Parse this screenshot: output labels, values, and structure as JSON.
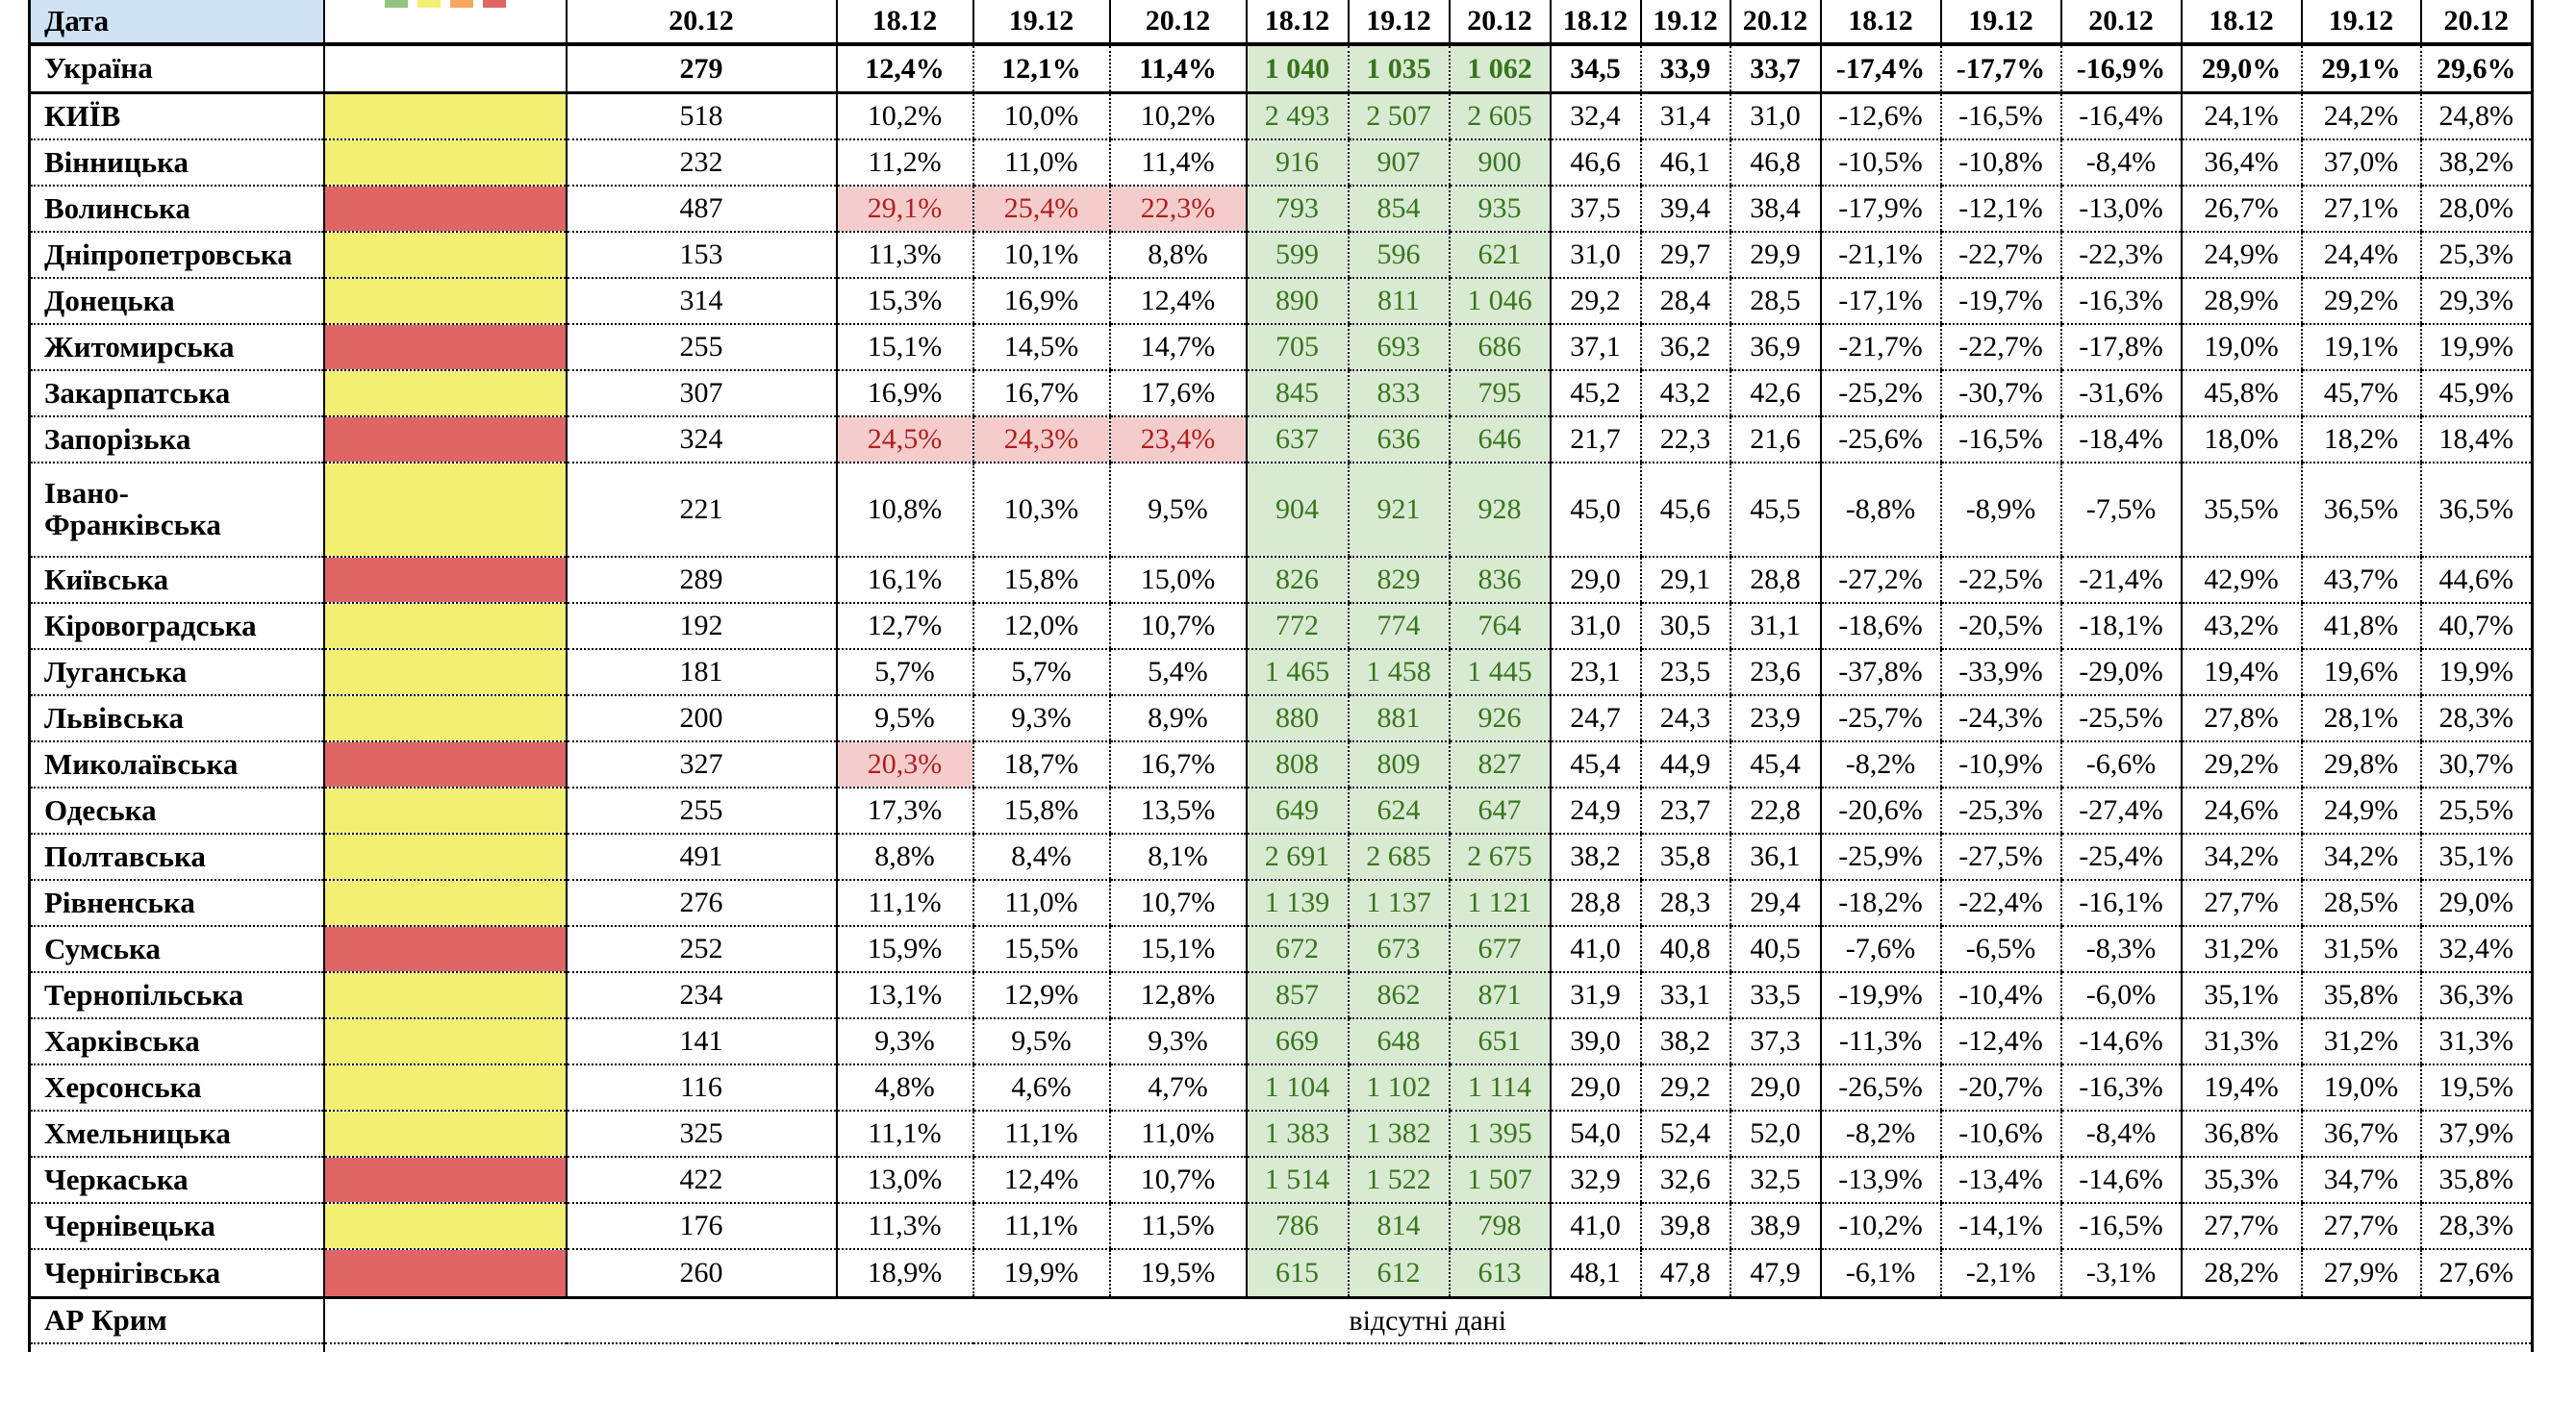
{
  "table": {
    "colors": {
      "header_blue": "#cfe2f3",
      "status_yellow": "#f2ef72",
      "status_red": "#e06565",
      "highlight_pink_bg": "#f4cccc",
      "highlight_red_text": "#ad2020",
      "green_col_bg": "#d9ead3",
      "green_col_text": "#38761d",
      "border": "#000000",
      "legend_swatches": [
        "#93c47d",
        "#f2ef72",
        "#f6a860",
        "#e06565"
      ]
    },
    "legend_swatch_names": [
      "legend-green-swatch",
      "legend-yellow-swatch",
      "legend-orange-swatch",
      "legend-red-swatch"
    ],
    "header_cells": [
      "Дата",
      "",
      "20.12",
      "18.12",
      "19.12",
      "20.12",
      "18.12",
      "19.12",
      "20.12",
      "18.12",
      "19.12",
      "20.12",
      "18.12",
      "19.12",
      "20.12",
      "18.12",
      "19.12",
      "20.12"
    ],
    "rows": [
      {
        "name": "Україна",
        "color": null,
        "bold": true,
        "values": [
          "279",
          "12,4%",
          "12,1%",
          "11,4%",
          "1 040",
          "1 035",
          "1 062",
          "34,5",
          "33,9",
          "33,7",
          "-17,4%",
          "-17,7%",
          "-16,9%",
          "29,0%",
          "29,1%",
          "29,6%"
        ],
        "red_cells": []
      },
      {
        "name": "КИЇВ",
        "color": "yellow",
        "values": [
          "518",
          "10,2%",
          "10,0%",
          "10,2%",
          "2 493",
          "2 507",
          "2 605",
          "32,4",
          "31,4",
          "31,0",
          "-12,6%",
          "-16,5%",
          "-16,4%",
          "24,1%",
          "24,2%",
          "24,8%"
        ],
        "red_cells": []
      },
      {
        "name": "Вінницька",
        "color": "yellow",
        "values": [
          "232",
          "11,2%",
          "11,0%",
          "11,4%",
          "916",
          "907",
          "900",
          "46,6",
          "46,1",
          "46,8",
          "-10,5%",
          "-10,8%",
          "-8,4%",
          "36,4%",
          "37,0%",
          "38,2%"
        ],
        "red_cells": []
      },
      {
        "name": "Волинська",
        "color": "red",
        "values": [
          "487",
          "29,1%",
          "25,4%",
          "22,3%",
          "793",
          "854",
          "935",
          "37,5",
          "39,4",
          "38,4",
          "-17,9%",
          "-12,1%",
          "-13,0%",
          "26,7%",
          "27,1%",
          "28,0%"
        ],
        "red_cells": [
          1,
          2,
          3
        ]
      },
      {
        "name": "Дніпропетровська",
        "color": "yellow",
        "values": [
          "153",
          "11,3%",
          "10,1%",
          "8,8%",
          "599",
          "596",
          "621",
          "31,0",
          "29,7",
          "29,9",
          "-21,1%",
          "-22,7%",
          "-22,3%",
          "24,9%",
          "24,4%",
          "25,3%"
        ],
        "red_cells": []
      },
      {
        "name": "Донецька",
        "color": "yellow",
        "values": [
          "314",
          "15,3%",
          "16,9%",
          "12,4%",
          "890",
          "811",
          "1 046",
          "29,2",
          "28,4",
          "28,5",
          "-17,1%",
          "-19,7%",
          "-16,3%",
          "28,9%",
          "29,2%",
          "29,3%"
        ],
        "red_cells": []
      },
      {
        "name": "Житомирська",
        "color": "red",
        "values": [
          "255",
          "15,1%",
          "14,5%",
          "14,7%",
          "705",
          "693",
          "686",
          "37,1",
          "36,2",
          "36,9",
          "-21,7%",
          "-22,7%",
          "-17,8%",
          "19,0%",
          "19,1%",
          "19,9%"
        ],
        "red_cells": []
      },
      {
        "name": "Закарпатська",
        "color": "yellow",
        "values": [
          "307",
          "16,9%",
          "16,7%",
          "17,6%",
          "845",
          "833",
          "795",
          "45,2",
          "43,2",
          "42,6",
          "-25,2%",
          "-30,7%",
          "-31,6%",
          "45,8%",
          "45,7%",
          "45,9%"
        ],
        "red_cells": []
      },
      {
        "name": "Запорізька",
        "color": "red",
        "values": [
          "324",
          "24,5%",
          "24,3%",
          "23,4%",
          "637",
          "636",
          "646",
          "21,7",
          "22,3",
          "21,6",
          "-25,6%",
          "-16,5%",
          "-18,4%",
          "18,0%",
          "18,2%",
          "18,4%"
        ],
        "red_cells": [
          1,
          2,
          3
        ]
      },
      {
        "name": "Івано-\nФранківська",
        "color": "yellow",
        "tall": true,
        "values": [
          "221",
          "10,8%",
          "10,3%",
          "9,5%",
          "904",
          "921",
          "928",
          "45,0",
          "45,6",
          "45,5",
          "-8,8%",
          "-8,9%",
          "-7,5%",
          "35,5%",
          "36,5%",
          "36,5%"
        ],
        "red_cells": []
      },
      {
        "name": "Київська",
        "color": "red",
        "values": [
          "289",
          "16,1%",
          "15,8%",
          "15,0%",
          "826",
          "829",
          "836",
          "29,0",
          "29,1",
          "28,8",
          "-27,2%",
          "-22,5%",
          "-21,4%",
          "42,9%",
          "43,7%",
          "44,6%"
        ],
        "red_cells": []
      },
      {
        "name": "Кіровоградська",
        "color": "yellow",
        "values": [
          "192",
          "12,7%",
          "12,0%",
          "10,7%",
          "772",
          "774",
          "764",
          "31,0",
          "30,5",
          "31,1",
          "-18,6%",
          "-20,5%",
          "-18,1%",
          "43,2%",
          "41,8%",
          "40,7%"
        ],
        "red_cells": []
      },
      {
        "name": "Луганська",
        "color": "yellow",
        "values": [
          "181",
          "5,7%",
          "5,7%",
          "5,4%",
          "1 465",
          "1 458",
          "1 445",
          "23,1",
          "23,5",
          "23,6",
          "-37,8%",
          "-33,9%",
          "-29,0%",
          "19,4%",
          "19,6%",
          "19,9%"
        ],
        "red_cells": []
      },
      {
        "name": "Львівська",
        "color": "yellow",
        "values": [
          "200",
          "9,5%",
          "9,3%",
          "8,9%",
          "880",
          "881",
          "926",
          "24,7",
          "24,3",
          "23,9",
          "-25,7%",
          "-24,3%",
          "-25,5%",
          "27,8%",
          "28,1%",
          "28,3%"
        ],
        "red_cells": []
      },
      {
        "name": "Миколаївська",
        "color": "red",
        "values": [
          "327",
          "20,3%",
          "18,7%",
          "16,7%",
          "808",
          "809",
          "827",
          "45,4",
          "44,9",
          "45,4",
          "-8,2%",
          "-10,9%",
          "-6,6%",
          "29,2%",
          "29,8%",
          "30,7%"
        ],
        "red_cells": [
          1
        ]
      },
      {
        "name": "Одеська",
        "color": "yellow",
        "values": [
          "255",
          "17,3%",
          "15,8%",
          "13,5%",
          "649",
          "624",
          "647",
          "24,9",
          "23,7",
          "22,8",
          "-20,6%",
          "-25,3%",
          "-27,4%",
          "24,6%",
          "24,9%",
          "25,5%"
        ],
        "red_cells": []
      },
      {
        "name": "Полтавська",
        "color": "yellow",
        "values": [
          "491",
          "8,8%",
          "8,4%",
          "8,1%",
          "2 691",
          "2 685",
          "2 675",
          "38,2",
          "35,8",
          "36,1",
          "-25,9%",
          "-27,5%",
          "-25,4%",
          "34,2%",
          "34,2%",
          "35,1%"
        ],
        "red_cells": []
      },
      {
        "name": "Рівненська",
        "color": "yellow",
        "values": [
          "276",
          "11,1%",
          "11,0%",
          "10,7%",
          "1 139",
          "1 137",
          "1 121",
          "28,8",
          "28,3",
          "29,4",
          "-18,2%",
          "-22,4%",
          "-16,1%",
          "27,7%",
          "28,5%",
          "29,0%"
        ],
        "red_cells": []
      },
      {
        "name": "Сумська",
        "color": "red",
        "values": [
          "252",
          "15,9%",
          "15,5%",
          "15,1%",
          "672",
          "673",
          "677",
          "41,0",
          "40,8",
          "40,5",
          "-7,6%",
          "-6,5%",
          "-8,3%",
          "31,2%",
          "31,5%",
          "32,4%"
        ],
        "red_cells": []
      },
      {
        "name": "Тернопільська",
        "color": "yellow",
        "values": [
          "234",
          "13,1%",
          "12,9%",
          "12,8%",
          "857",
          "862",
          "871",
          "31,9",
          "33,1",
          "33,5",
          "-19,9%",
          "-10,4%",
          "-6,0%",
          "35,1%",
          "35,8%",
          "36,3%"
        ],
        "red_cells": []
      },
      {
        "name": "Харківська",
        "color": "yellow",
        "values": [
          "141",
          "9,3%",
          "9,5%",
          "9,3%",
          "669",
          "648",
          "651",
          "39,0",
          "38,2",
          "37,3",
          "-11,3%",
          "-12,4%",
          "-14,6%",
          "31,3%",
          "31,2%",
          "31,3%"
        ],
        "red_cells": []
      },
      {
        "name": "Херсонська",
        "color": "yellow",
        "values": [
          "116",
          "4,8%",
          "4,6%",
          "4,7%",
          "1 104",
          "1 102",
          "1 114",
          "29,0",
          "29,2",
          "29,0",
          "-26,5%",
          "-20,7%",
          "-16,3%",
          "19,4%",
          "19,0%",
          "19,5%"
        ],
        "red_cells": []
      },
      {
        "name": "Хмельницька",
        "color": "yellow",
        "values": [
          "325",
          "11,1%",
          "11,1%",
          "11,0%",
          "1 383",
          "1 382",
          "1 395",
          "54,0",
          "52,4",
          "52,0",
          "-8,2%",
          "-10,6%",
          "-8,4%",
          "36,8%",
          "36,7%",
          "37,9%"
        ],
        "red_cells": []
      },
      {
        "name": "Черкаська",
        "color": "red",
        "values": [
          "422",
          "13,0%",
          "12,4%",
          "10,7%",
          "1 514",
          "1 522",
          "1 507",
          "32,9",
          "32,6",
          "32,5",
          "-13,9%",
          "-13,4%",
          "-14,6%",
          "35,3%",
          "34,7%",
          "35,8%"
        ],
        "red_cells": []
      },
      {
        "name": "Чернівецька",
        "color": "yellow",
        "values": [
          "176",
          "11,3%",
          "11,1%",
          "11,5%",
          "786",
          "814",
          "798",
          "41,0",
          "39,8",
          "38,9",
          "-10,2%",
          "-14,1%",
          "-16,5%",
          "27,7%",
          "27,7%",
          "28,3%"
        ],
        "red_cells": []
      },
      {
        "name": "Чернігівська",
        "color": "red",
        "thick_bottom": true,
        "values": [
          "260",
          "18,9%",
          "19,9%",
          "19,5%",
          "615",
          "612",
          "613",
          "48,1",
          "47,8",
          "47,9",
          "-6,1%",
          "-2,1%",
          "-3,1%",
          "28,2%",
          "27,9%",
          "27,6%"
        ],
        "red_cells": []
      }
    ],
    "no_data_row": {
      "name": "АР Крим",
      "note": "відсутні дані"
    }
  }
}
